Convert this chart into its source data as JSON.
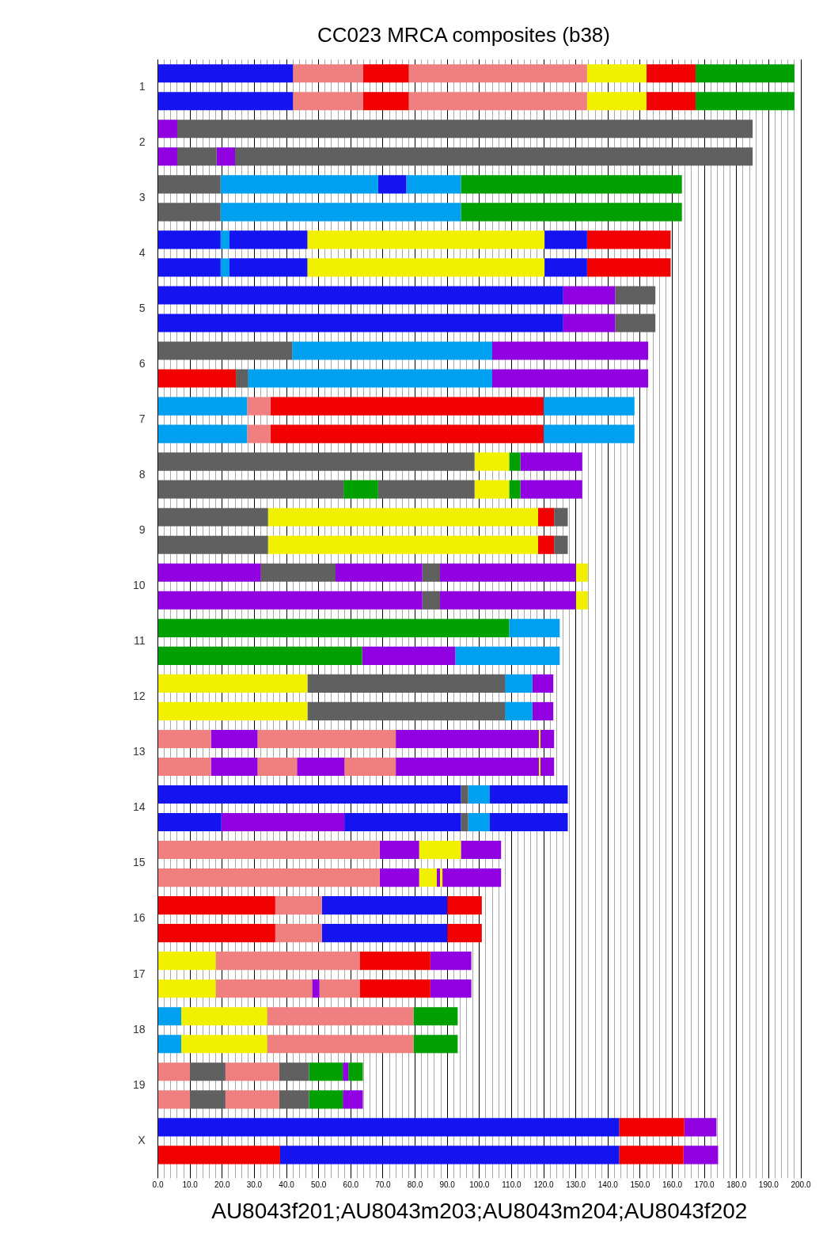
{
  "chart_data": {
    "type": "bar",
    "orientation": "horizontal",
    "stacked": true,
    "title": "CC023 MRCA composites (b38)",
    "xlabel": "AU8043f201;AU8043m203;AU8043m204;AU8043f202",
    "grid": "x",
    "categories": [
      "1",
      null,
      "2",
      null,
      "3",
      null,
      "4",
      null,
      "5",
      null,
      "6",
      null,
      "7",
      null,
      "8",
      null,
      "9",
      null,
      "10",
      null,
      "11",
      null,
      "12",
      null,
      "13",
      null,
      "14",
      null,
      "15",
      null,
      "16",
      null,
      "17",
      null,
      "18",
      null,
      "19",
      null,
      "X",
      null
    ],
    "xlim": [
      0,
      200
    ],
    "xticks": [
      {
        "value": 0,
        "label": "0.0"
      },
      {
        "value": 2,
        "label": null
      },
      {
        "value": 4,
        "label": null
      },
      {
        "value": 6,
        "label": null
      },
      {
        "value": 8,
        "label": null
      },
      {
        "value": 10,
        "label": "10.0"
      },
      {
        "value": 12,
        "label": null
      },
      {
        "value": 14,
        "label": null
      },
      {
        "value": 16,
        "label": null
      },
      {
        "value": 18,
        "label": null
      },
      {
        "value": 20,
        "label": "20.0"
      },
      {
        "value": 22,
        "label": null
      },
      {
        "value": 24,
        "label": null
      },
      {
        "value": 26,
        "label": null
      },
      {
        "value": 28,
        "label": null
      },
      {
        "value": 30,
        "label": "30.0"
      },
      {
        "value": 32,
        "label": null
      },
      {
        "value": 34,
        "label": null
      },
      {
        "value": 36,
        "label": null
      },
      {
        "value": 38,
        "label": null
      },
      {
        "value": 40,
        "label": "40.0"
      },
      {
        "value": 42,
        "label": null
      },
      {
        "value": 44,
        "label": null
      },
      {
        "value": 46,
        "label": null
      },
      {
        "value": 48,
        "label": null
      },
      {
        "value": 50,
        "label": "50.0"
      },
      {
        "value": 52,
        "label": null
      },
      {
        "value": 54,
        "label": null
      },
      {
        "value": 56,
        "label": null
      },
      {
        "value": 58,
        "label": null
      },
      {
        "value": 60,
        "label": "60.0"
      },
      {
        "value": 62,
        "label": null
      },
      {
        "value": 64,
        "label": null
      },
      {
        "value": 66,
        "label": null
      },
      {
        "value": 68,
        "label": null
      },
      {
        "value": 70,
        "label": "70.0"
      },
      {
        "value": 72,
        "label": null
      },
      {
        "value": 74,
        "label": null
      },
      {
        "value": 76,
        "label": null
      },
      {
        "value": 78,
        "label": null
      },
      {
        "value": 80,
        "label": "80.0"
      },
      {
        "value": 82,
        "label": null
      },
      {
        "value": 84,
        "label": null
      },
      {
        "value": 86,
        "label": null
      },
      {
        "value": 88,
        "label": null
      },
      {
        "value": 90,
        "label": "90.0"
      },
      {
        "value": 92,
        "label": null
      },
      {
        "value": 94,
        "label": null
      },
      {
        "value": 96,
        "label": null
      },
      {
        "value": 98,
        "label": null
      },
      {
        "value": 100,
        "label": "100.0"
      },
      {
        "value": 102,
        "label": null
      },
      {
        "value": 104,
        "label": null
      },
      {
        "value": 106,
        "label": null
      },
      {
        "value": 108,
        "label": null
      },
      {
        "value": 110,
        "label": "110.0"
      },
      {
        "value": 112,
        "label": null
      },
      {
        "value": 114,
        "label": null
      },
      {
        "value": 116,
        "label": null
      },
      {
        "value": 118,
        "label": null
      },
      {
        "value": 120,
        "label": "120.0"
      },
      {
        "value": 122,
        "label": null
      },
      {
        "value": 124,
        "label": null
      },
      {
        "value": 126,
        "label": null
      },
      {
        "value": 128,
        "label": null
      },
      {
        "value": 130,
        "label": "130.0"
      },
      {
        "value": 132,
        "label": null
      },
      {
        "value": 134,
        "label": null
      },
      {
        "value": 136,
        "label": null
      },
      {
        "value": 138,
        "label": null
      },
      {
        "value": 140,
        "label": "140.0"
      },
      {
        "value": 142,
        "label": null
      },
      {
        "value": 144,
        "label": null
      },
      {
        "value": 146,
        "label": null
      },
      {
        "value": 148,
        "label": null
      },
      {
        "value": 150,
        "label": "150.0"
      },
      {
        "value": 152,
        "label": null
      },
      {
        "value": 154,
        "label": null
      },
      {
        "value": 156,
        "label": null
      },
      {
        "value": 158,
        "label": null
      },
      {
        "value": 160,
        "label": "160.0"
      },
      {
        "value": 162,
        "label": null
      },
      {
        "value": 164,
        "label": null
      },
      {
        "value": 166,
        "label": null
      },
      {
        "value": 168,
        "label": null
      },
      {
        "value": 170,
        "label": "170.0"
      },
      {
        "value": 172,
        "label": null
      },
      {
        "value": 174,
        "label": null
      },
      {
        "value": 176,
        "label": null
      },
      {
        "value": 178,
        "label": null
      },
      {
        "value": 180,
        "label": "180.0"
      },
      {
        "value": 182,
        "label": null
      },
      {
        "value": 184,
        "label": null
      },
      {
        "value": 186,
        "label": null
      },
      {
        "value": 188,
        "label": null
      },
      {
        "value": 190,
        "label": "190.0"
      },
      {
        "value": 192,
        "label": null
      },
      {
        "value": 194,
        "label": null
      },
      {
        "value": 196,
        "label": null
      },
      {
        "value": 198,
        "label": null
      },
      {
        "value": 200,
        "label": "200.0"
      }
    ],
    "series": [
      {
        "values": [
          42,
          42,
          6,
          6,
          19.5,
          19.5,
          19.5,
          19.5,
          126,
          126,
          41.75,
          24.25,
          27.75,
          27.75,
          98.5,
          57.75,
          34.25,
          34.25,
          32,
          82.25,
          109.25,
          63.5,
          46.5,
          46.5,
          16.5,
          16.5,
          94.25,
          19.75,
          69,
          69,
          36.5,
          36.5,
          18,
          18,
          7.25,
          7.25,
          10,
          10,
          143.5,
          38
        ],
        "colors": [
          "#1414f0",
          "#1414f0",
          "#9000e0",
          "#9000e0",
          "#606060",
          "#606060",
          "#1414f0",
          "#1414f0",
          "#1414f0",
          "#1414f0",
          "#606060",
          "#f00000",
          "#00a0f0",
          "#00a0f0",
          "#606060",
          "#606060",
          "#606060",
          "#606060",
          "#9000e0",
          "#9000e0",
          "#00a000",
          "#00a000",
          "#f0f000",
          "#f0f000",
          "#f08080",
          "#f08080",
          "#1414f0",
          "#1414f0",
          "#f08080",
          "#f08080",
          "#f00000",
          "#f00000",
          "#f0f000",
          "#f0f000",
          "#00a0f0",
          "#00a0f0",
          "#f08080",
          "#f08080",
          "#1414f0",
          "#f00000"
        ]
      },
      {
        "values": [
          21.75,
          21.75,
          179,
          12.25,
          49,
          74.75,
          2.75,
          2.75,
          16.25,
          16.25,
          62.25,
          3.75,
          7.25,
          7.25,
          10.75,
          10.75,
          84,
          84,
          23.25,
          5.5,
          15.75,
          29,
          61.5,
          61.5,
          14.5,
          14.5,
          2.25,
          38.25,
          12.25,
          12.25,
          14.5,
          14.5,
          44.75,
          30,
          26.75,
          26.75,
          11,
          11,
          20.25,
          105.5
        ],
        "colors": [
          "#f08080",
          "#f08080",
          "#606060",
          "#606060",
          "#00a0f0",
          "#00a0f0",
          "#00a0f0",
          "#00a0f0",
          "#9000e0",
          "#9000e0",
          "#00a0f0",
          "#606060",
          "#f08080",
          "#f08080",
          "#f0f000",
          "#00a000",
          "#f0f000",
          "#f0f000",
          "#606060",
          "#606060",
          "#00a0f0",
          "#9000e0",
          "#606060",
          "#606060",
          "#9000e0",
          "#9000e0",
          "#606060",
          "#9000e0",
          "#9000e0",
          "#9000e0",
          "#f08080",
          "#f08080",
          "#f08080",
          "#f08080",
          "#f0f000",
          "#f0f000",
          "#606060",
          "#606060",
          "#f00000",
          "#1414f0"
        ]
      },
      {
        "values": [
          14.25,
          14.25,
          null,
          5.75,
          8.75,
          68.75,
          24.25,
          24.25,
          12.5,
          12.5,
          48.5,
          76,
          85,
          85,
          3.5,
          30,
          5,
          5,
          27,
          42.25,
          null,
          32.5,
          8.5,
          8.5,
          43,
          12.25,
          6.75,
          36.25,
          13,
          5.5,
          39,
          39,
          22,
          2.25,
          45.5,
          45.5,
          16.75,
          16.75,
          10,
          20
        ],
        "colors": [
          "#f00000",
          "#f00000",
          null,
          "#9000e0",
          "#1414f0",
          "#00a000",
          "#1414f0",
          "#1414f0",
          "#606060",
          "#606060",
          "#9000e0",
          "#00a0f0",
          "#f00000",
          "#f00000",
          "#00a000",
          "#606060",
          "#f00000",
          "#f00000",
          "#9000e0",
          "#9000e0",
          null,
          "#00a0f0",
          "#00a0f0",
          "#00a0f0",
          "#f08080",
          "#f08080",
          "#00a0f0",
          "#1414f0",
          "#f0f000",
          "#f0f000",
          "#1414f0",
          "#1414f0",
          "#f00000",
          "#9000e0",
          "#f08080",
          "#f08080",
          "#f08080",
          "#f08080",
          "#9000e0",
          "#f00000"
        ]
      },
      {
        "values": [
          55.5,
          55.5,
          null,
          161,
          17,
          null,
          73.75,
          73.75,
          null,
          null,
          null,
          48.5,
          28.25,
          28.25,
          19.25,
          10.75,
          4.25,
          4.25,
          5.5,
          3.75,
          null,
          null,
          6.5,
          6.5,
          44.5,
          14.75,
          24.25,
          2.25,
          12.5,
          1,
          10.75,
          10.75,
          12.75,
          12.5,
          13.75,
          13.75,
          9.25,
          9.25,
          null,
          10.75
        ],
        "colors": [
          "#f08080",
          "#f08080",
          null,
          "#606060",
          "#00a0f0",
          null,
          "#f0f000",
          "#f0f000",
          null,
          null,
          null,
          "#9000e0",
          "#00a0f0",
          "#00a0f0",
          "#9000e0",
          "#f0f000",
          "#606060",
          "#606060",
          "#606060",
          "#f0f000",
          null,
          null,
          "#9000e0",
          "#9000e0",
          "#9000e0",
          "#9000e0",
          "#1414f0",
          "#606060",
          "#9000e0",
          "#9000e0",
          "#f00000",
          "#f00000",
          "#9000e0",
          "#f08080",
          "#00a000",
          "#00a000",
          "#606060",
          "#606060",
          null,
          "#9000e0"
        ]
      },
      {
        "values": [
          18.5,
          18.5,
          null,
          null,
          68.75,
          null,
          13.25,
          13.25,
          null,
          null,
          null,
          null,
          null,
          null,
          null,
          3.5,
          null,
          null,
          42.25,
          null,
          null,
          null,
          null,
          null,
          0.5,
          16,
          null,
          6.75,
          null,
          0.75,
          null,
          null,
          null,
          22,
          null,
          null,
          10.5,
          10.5,
          null,
          null
        ],
        "colors": [
          "#f0f000",
          "#f0f000",
          null,
          null,
          "#00a000",
          null,
          "#1414f0",
          "#1414f0",
          null,
          null,
          null,
          null,
          null,
          null,
          null,
          "#00a000",
          null,
          null,
          "#9000e0",
          null,
          null,
          null,
          null,
          null,
          "#f0f000",
          "#f08080",
          null,
          "#00a0f0",
          null,
          "#f0f000",
          null,
          null,
          null,
          "#f00000",
          null,
          null,
          "#00a000",
          "#00a000",
          null,
          null
        ]
      },
      {
        "values": [
          15.25,
          15.25,
          null,
          null,
          null,
          null,
          26,
          26,
          null,
          null,
          null,
          null,
          null,
          null,
          null,
          19.25,
          null,
          null,
          3.75,
          null,
          null,
          null,
          null,
          null,
          4.25,
          44.5,
          null,
          24.25,
          null,
          18.25,
          null,
          null,
          null,
          12.75,
          null,
          null,
          1.75,
          6.25,
          null,
          null
        ],
        "colors": [
          "#f00000",
          "#f00000",
          null,
          null,
          null,
          null,
          "#f00000",
          "#f00000",
          null,
          null,
          null,
          null,
          null,
          null,
          null,
          "#9000e0",
          null,
          null,
          "#f0f000",
          null,
          null,
          null,
          null,
          null,
          "#9000e0",
          "#9000e0",
          null,
          "#1414f0",
          null,
          "#9000e0",
          null,
          null,
          null,
          "#9000e0",
          null,
          null,
          "#9000e0",
          "#9000e0",
          null,
          null
        ]
      },
      {
        "values": [
          30.75,
          30.75,
          null,
          null,
          null,
          null,
          null,
          null,
          null,
          null,
          null,
          null,
          null,
          null,
          null,
          null,
          null,
          null,
          null,
          null,
          null,
          null,
          null,
          null,
          null,
          0.5,
          null,
          null,
          null,
          null,
          null,
          null,
          null,
          null,
          null,
          null,
          4.5,
          null,
          null,
          null
        ],
        "colors": [
          "#00a000",
          "#00a000",
          null,
          null,
          null,
          null,
          null,
          null,
          null,
          null,
          null,
          null,
          null,
          null,
          null,
          null,
          null,
          null,
          null,
          null,
          null,
          null,
          null,
          null,
          null,
          "#f0f000",
          null,
          null,
          null,
          null,
          null,
          null,
          null,
          null,
          null,
          null,
          "#00a000",
          null,
          null,
          null
        ]
      },
      {
        "values": [
          null,
          null,
          null,
          null,
          null,
          null,
          null,
          null,
          null,
          null,
          null,
          null,
          null,
          null,
          null,
          null,
          null,
          null,
          null,
          null,
          null,
          null,
          null,
          null,
          null,
          4.25,
          null,
          null,
          null,
          null,
          null,
          null,
          null,
          null,
          null,
          null,
          null,
          null,
          null,
          null
        ],
        "colors": [
          null,
          null,
          null,
          null,
          null,
          null,
          null,
          null,
          null,
          null,
          null,
          null,
          null,
          null,
          null,
          null,
          null,
          null,
          null,
          null,
          null,
          null,
          null,
          null,
          null,
          "#9000e0",
          null,
          null,
          null,
          null,
          null,
          null,
          null,
          null,
          null,
          null,
          null,
          null,
          null,
          null
        ]
      }
    ]
  }
}
